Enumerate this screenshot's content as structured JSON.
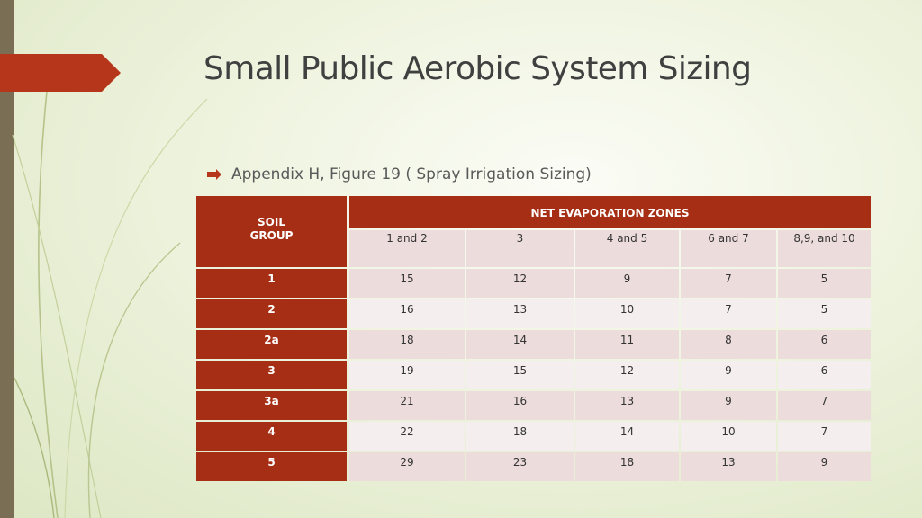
{
  "slide": {
    "title": "Small Public Aerobic System Sizing",
    "bullet": "Appendix H, Figure 19 ( Spray Irrigation Sizing)"
  },
  "table": {
    "corner_label": [
      "SOIL",
      "GROUP"
    ],
    "group_header": "NET EVAPORATION ZONES",
    "columns": [
      "1 and 2",
      "3",
      "4 and 5",
      "6 and 7",
      "8,9, and 10"
    ],
    "rows": [
      {
        "label": "1",
        "values": [
          "15",
          "12",
          "9",
          "7",
          "5"
        ]
      },
      {
        "label": "2",
        "values": [
          "16",
          "13",
          "10",
          "7",
          "5"
        ]
      },
      {
        "label": "2a",
        "values": [
          "18",
          "14",
          "11",
          "8",
          "6"
        ]
      },
      {
        "label": "3",
        "values": [
          "19",
          "15",
          "12",
          "9",
          "6"
        ]
      },
      {
        "label": "3a",
        "values": [
          "21",
          "16",
          "13",
          "9",
          "7"
        ]
      },
      {
        "label": "4",
        "values": [
          "22",
          "18",
          "14",
          "10",
          "7"
        ]
      },
      {
        "label": "5",
        "values": [
          "29",
          "23",
          "18",
          "13",
          "9"
        ]
      }
    ]
  },
  "colors": {
    "accent": "#b6361b",
    "header_fill": "#a52e14",
    "row_light": "#ecdcdb",
    "row_lighter": "#f5eeee",
    "left_bar": "#7a6e55",
    "background": "#eef3de"
  },
  "icons": {
    "bullet": "arrow-bullet-icon"
  }
}
